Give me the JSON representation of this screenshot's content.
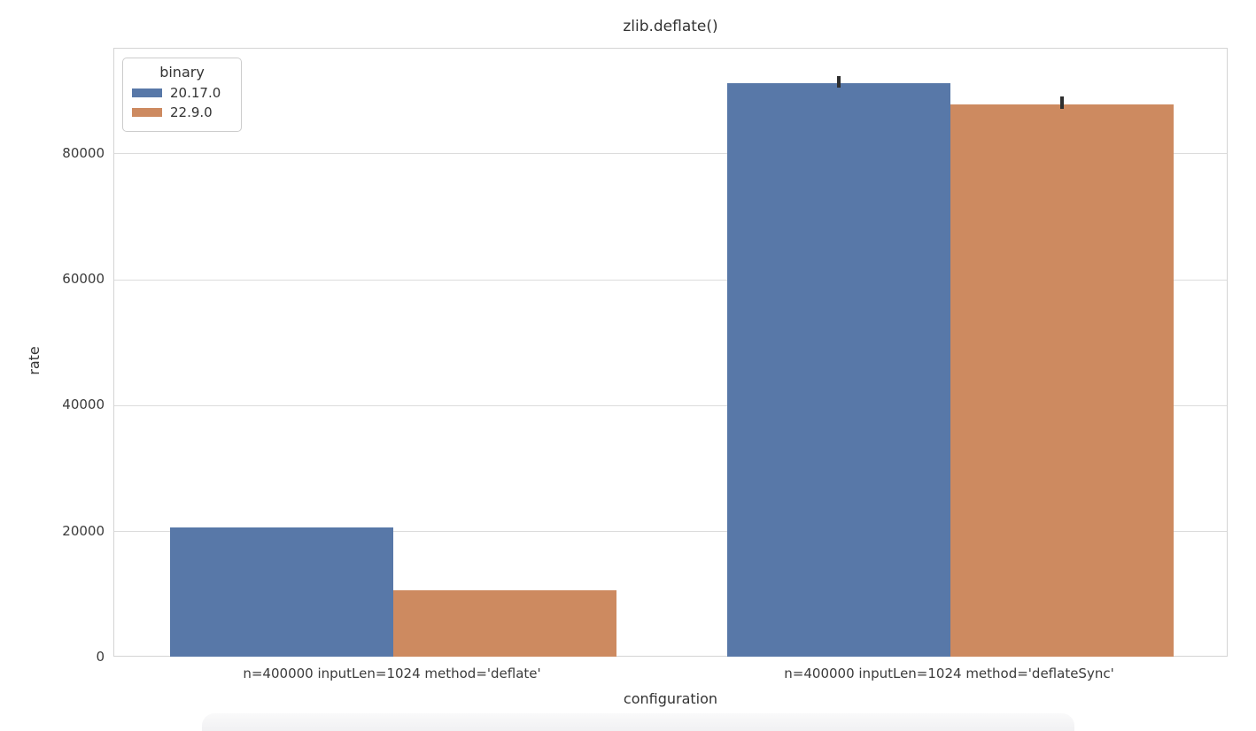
{
  "title": "zlib.deflate()",
  "axes": {
    "xlabel": "configuration",
    "ylabel": "rate"
  },
  "legend": {
    "title": "binary",
    "entries": [
      {
        "label": "20.17.0",
        "color": "#5878a8"
      },
      {
        "label": "22.9.0",
        "color": "#cd8a60"
      }
    ]
  },
  "chart_data": {
    "type": "bar",
    "title": "zlib.deflate()",
    "xlabel": "configuration",
    "ylabel": "rate",
    "categories": [
      "n=400000 inputLen=1024 method='deflate'",
      "n=400000 inputLen=1024 method='deflateSync'"
    ],
    "series": [
      {
        "name": "20.17.0",
        "color": "#5878a8",
        "values": [
          20600,
          91200
        ],
        "ci": [
          null,
          [
            90500,
            92400
          ]
        ]
      },
      {
        "name": "22.9.0",
        "color": "#cd8a60",
        "values": [
          10700,
          87900
        ],
        "ci": [
          null,
          [
            87100,
            89100
          ]
        ]
      }
    ],
    "yticks": [
      {
        "value": 0,
        "label": "0"
      },
      {
        "value": 20000,
        "label": "20000"
      },
      {
        "value": 40000,
        "label": "40000"
      },
      {
        "value": 60000,
        "label": "60000"
      },
      {
        "value": 80000,
        "label": "80000"
      }
    ],
    "ylim": [
      0,
      96700
    ],
    "grid": "horizontal",
    "legend_position": "upper left",
    "legend_title": "binary"
  }
}
